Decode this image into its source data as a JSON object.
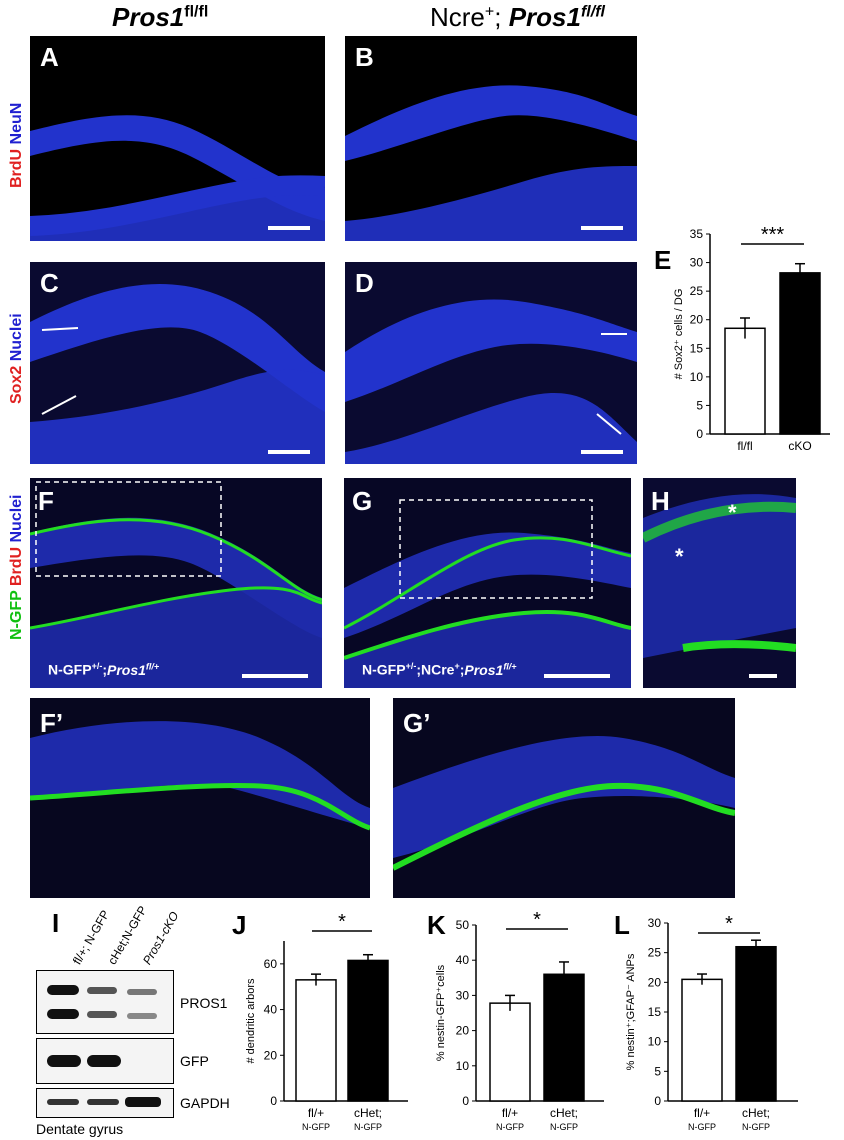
{
  "column_titles": {
    "left_main": "Pros1",
    "left_sup": "fl/fl",
    "right_main": "Ncre",
    "right_sup": "+",
    "right_sep": "; ",
    "right_gene": "Pros1",
    "right_gene_sup": "fl/fl"
  },
  "panels": {
    "A": "A",
    "B": "B",
    "C": "C",
    "D": "D",
    "E": "E",
    "F": "F",
    "G": "G",
    "H": "H",
    "Fp": "F’",
    "Gp": "G’",
    "I": "I",
    "J": "J",
    "K": "K",
    "L": "L"
  },
  "row_labels": {
    "row1": {
      "a": "BrdU",
      "b": " NeuN"
    },
    "row2": {
      "a": "Sox2",
      "b": " Nuclei"
    },
    "row3": {
      "a": "N-GFP",
      "b": " BrdU",
      "c": " Nuclei"
    }
  },
  "genotype_labels": {
    "F": "N-GFP+/-;Pros1fl/+",
    "G": "N-GFP+/-;NCre+;Pros1fl/+"
  },
  "asterisk_marks": [
    "*",
    "*"
  ],
  "western": {
    "lanes": [
      "fl/+; N-GFP",
      "cHet;N-GFP",
      "Pros1-cKO"
    ],
    "bands": [
      "PROS1",
      "GFP",
      "GAPDH"
    ],
    "footer": "Dentate gyrus"
  },
  "colors": {
    "blue_stain": "#2233cc",
    "red_stain": "#ff2020",
    "green_stain": "#22dd22",
    "brdu_label": "#e02020",
    "neun_label": "#2020d0",
    "gfp_label": "#10c010"
  },
  "chart_data": [
    {
      "panel": "E",
      "type": "bar",
      "categories": [
        "fl/fl",
        "cKO"
      ],
      "category_sub": [
        "",
        ""
      ],
      "values": [
        18.5,
        28.2
      ],
      "errors": [
        1.8,
        1.6
      ],
      "fills": [
        "#ffffff",
        "#000000"
      ],
      "ylabel": "# Sox2⁺ cells / DG",
      "ylim": [
        0,
        35
      ],
      "yticks": [
        0,
        5,
        10,
        15,
        20,
        25,
        30,
        35
      ],
      "significance": "***"
    },
    {
      "panel": "J",
      "type": "bar",
      "categories": [
        "fl/+",
        "cHet;"
      ],
      "category_sub": [
        "N-GFP",
        "N-GFP"
      ],
      "values": [
        53,
        61.5
      ],
      "errors": [
        2.5,
        2.5
      ],
      "fills": [
        "#ffffff",
        "#000000"
      ],
      "ylabel": "# dendritic arbors",
      "ylim": [
        0,
        70
      ],
      "yticks": [
        0,
        20,
        40,
        60
      ],
      "significance": "*"
    },
    {
      "panel": "K",
      "type": "bar",
      "categories": [
        "fl/+",
        "cHet;"
      ],
      "category_sub": [
        "N-GFP",
        "N-GFP"
      ],
      "values": [
        27.8,
        36
      ],
      "errors": [
        2.2,
        3.5
      ],
      "fills": [
        "#ffffff",
        "#000000"
      ],
      "ylabel": "% nestin-GFP⁺cells",
      "ylim": [
        0,
        50
      ],
      "yticks": [
        0,
        10,
        20,
        30,
        40,
        50
      ],
      "significance": "*"
    },
    {
      "panel": "L",
      "type": "bar",
      "categories": [
        "fl/+",
        "cHet;"
      ],
      "category_sub": [
        "N-GFP",
        "N-GFP"
      ],
      "values": [
        20.5,
        26
      ],
      "errors": [
        0.9,
        1.1
      ],
      "fills": [
        "#ffffff",
        "#000000"
      ],
      "ylabel": "% nestin⁺;GFAP⁻ ANPs",
      "ylim": [
        0,
        30
      ],
      "yticks": [
        0,
        5,
        10,
        15,
        20,
        25,
        30
      ],
      "significance": "*"
    }
  ]
}
